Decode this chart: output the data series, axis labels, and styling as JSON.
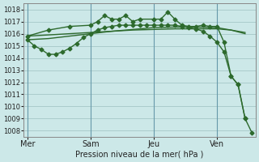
{
  "background_color": "#cce8e8",
  "grid_color": "#aacccc",
  "line_color": "#2d6a2d",
  "title": "Pression niveau de la mer( hPa )",
  "ylim": [
    1007.5,
    1018.5
  ],
  "yticks": [
    1008,
    1009,
    1010,
    1011,
    1012,
    1013,
    1014,
    1015,
    1016,
    1017,
    1018
  ],
  "day_labels": [
    "Mer",
    "Sam",
    "Jeu",
    "Ven"
  ],
  "day_positions": [
    0,
    9,
    18,
    27
  ],
  "xlim": [
    -0.5,
    32.5
  ],
  "line1": {
    "x": [
      0,
      3,
      6,
      9,
      12,
      15,
      18,
      21,
      24,
      27,
      29,
      31
    ],
    "y": [
      1015.8,
      1015.9,
      1016.0,
      1016.1,
      1016.2,
      1016.3,
      1016.35,
      1016.4,
      1016.4,
      1016.4,
      1016.3,
      1016.1
    ]
  },
  "line2": {
    "x": [
      0,
      3,
      6,
      9,
      12,
      15,
      18,
      21,
      24,
      27,
      29,
      31
    ],
    "y": [
      1015.5,
      1015.6,
      1015.8,
      1016.0,
      1016.2,
      1016.35,
      1016.5,
      1016.55,
      1016.55,
      1016.5,
      1016.3,
      1016.0
    ]
  },
  "line3": {
    "x": [
      0,
      1,
      2,
      3,
      4,
      5,
      6,
      7,
      8,
      9,
      10,
      11,
      12,
      13,
      14,
      15,
      16,
      17,
      18,
      19,
      20,
      21,
      22,
      23,
      24,
      25,
      26,
      27,
      28,
      29,
      30,
      31
    ],
    "y": [
      1015.5,
      1015.0,
      1014.7,
      1014.3,
      1014.3,
      1014.5,
      1014.8,
      1015.2,
      1015.7,
      1016.0,
      1016.3,
      1016.5,
      1016.6,
      1016.7,
      1016.7,
      1016.7,
      1016.7,
      1016.7,
      1016.7,
      1016.7,
      1016.7,
      1016.7,
      1016.6,
      1016.5,
      1016.4,
      1016.2,
      1015.8,
      1015.3,
      1014.5,
      1012.5,
      1011.8,
      1009.0
    ]
  },
  "line4": {
    "x": [
      0,
      3,
      6,
      9,
      10,
      11,
      12,
      13,
      14,
      15,
      16,
      18,
      19,
      20,
      21,
      22,
      23,
      24,
      25,
      26,
      27,
      28,
      29,
      30,
      31,
      32
    ],
    "y": [
      1015.8,
      1016.3,
      1016.6,
      1016.7,
      1017.0,
      1017.5,
      1017.2,
      1017.2,
      1017.5,
      1017.0,
      1017.2,
      1017.2,
      1017.2,
      1017.8,
      1017.2,
      1016.7,
      1016.6,
      1016.6,
      1016.7,
      1016.6,
      1016.6,
      1015.3,
      1012.5,
      1011.8,
      1009.0,
      1007.8
    ]
  }
}
